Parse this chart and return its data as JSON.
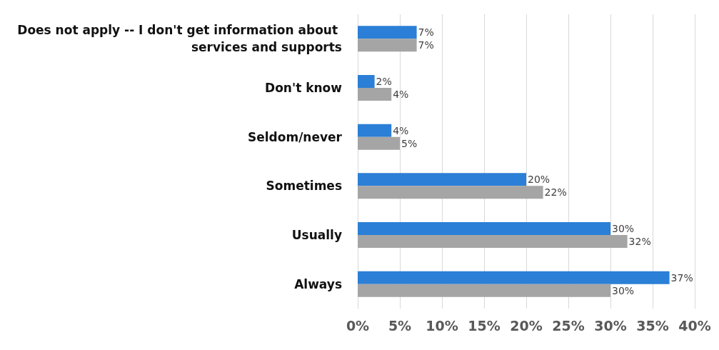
{
  "chart_data": {
    "type": "bar",
    "orientation": "horizontal",
    "categories": [
      "Does not apply -- I don't get information about services and supports",
      "Don't know",
      "Seldom/never",
      "Sometimes",
      "Usually",
      "Always"
    ],
    "series": [
      {
        "color": "#2b7fd6",
        "values": [
          7,
          2,
          4,
          20,
          30,
          37
        ],
        "value_labels": [
          "7%",
          "2%",
          "4%",
          "20%",
          "30%",
          "37%"
        ]
      },
      {
        "color": "#a5a5a5",
        "values": [
          7,
          4,
          5,
          22,
          32,
          30
        ],
        "value_labels": [
          "7%",
          "4%",
          "5%",
          "22%",
          "32%",
          "30%"
        ]
      }
    ],
    "xlim": [
      0,
      40
    ],
    "xticks": [
      {
        "value": 0,
        "label": "0%"
      },
      {
        "value": 5,
        "label": "5%"
      },
      {
        "value": 10,
        "label": "10%"
      },
      {
        "value": 15,
        "label": "15%"
      },
      {
        "value": 20,
        "label": "20%"
      },
      {
        "value": 25,
        "label": "25%"
      },
      {
        "value": 30,
        "label": "30%"
      },
      {
        "value": 35,
        "label": "35%"
      },
      {
        "value": 40,
        "label": "40%"
      }
    ],
    "grid": "x"
  }
}
